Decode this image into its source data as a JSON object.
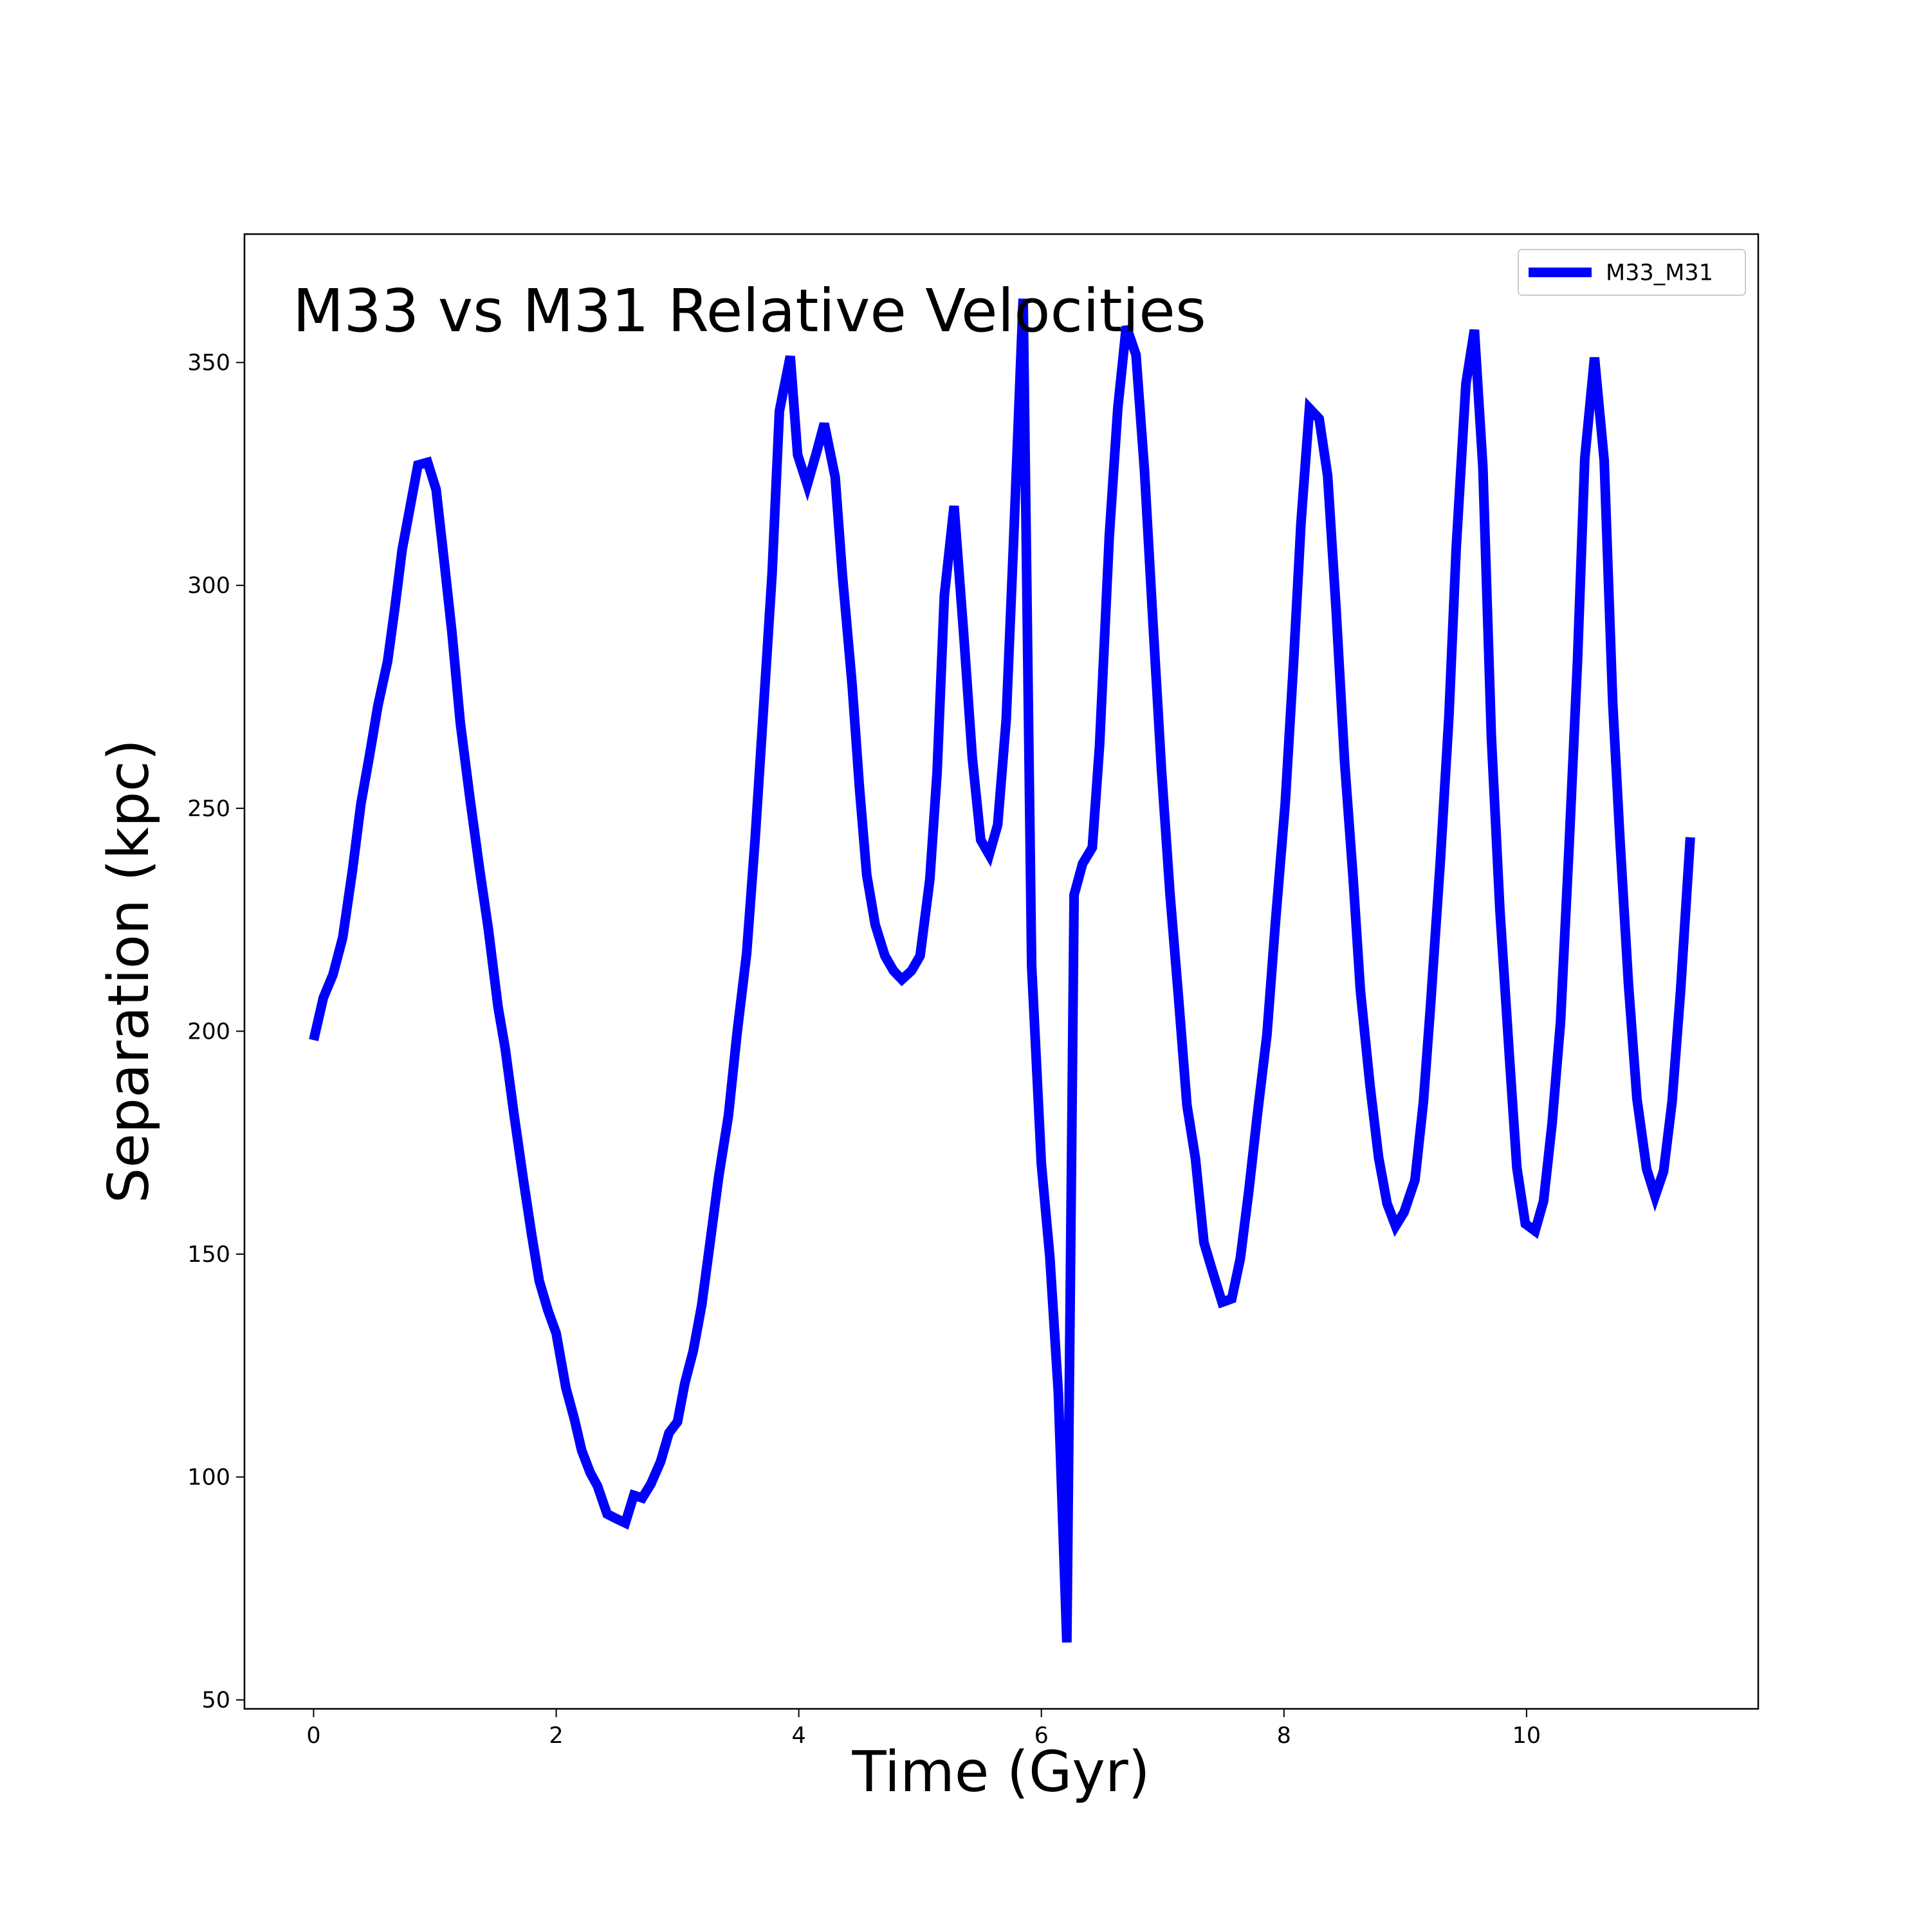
{
  "chart_data": {
    "type": "line",
    "title": "M33 vs M31 Relative Velocities",
    "x_label": "Time (Gyr)",
    "y_label": "Separation (kpc)",
    "x": [
      0,
      0.08,
      0.16,
      0.24,
      0.32,
      0.39,
      0.46,
      0.53,
      0.61,
      0.67,
      0.73,
      0.86,
      0.94,
      1.01,
      1.07,
      1.14,
      1.21,
      1.29,
      1.37,
      1.44,
      1.52,
      1.58,
      1.65,
      1.73,
      1.8,
      1.86,
      1.93,
      2.0,
      2.08,
      2.15,
      2.21,
      2.28,
      2.34,
      2.42,
      2.5,
      2.57,
      2.64,
      2.71,
      2.78,
      2.86,
      2.93,
      3.0,
      3.06,
      3.13,
      3.2,
      3.27,
      3.34,
      3.42,
      3.49,
      3.57,
      3.64,
      3.71,
      3.78,
      3.84,
      3.93,
      3.99,
      4.07,
      4.15,
      4.21,
      4.3,
      4.36,
      4.44,
      4.5,
      4.56,
      4.63,
      4.71,
      4.78,
      4.85,
      4.93,
      5.0,
      5.08,
      5.14,
      5.2,
      5.28,
      5.36,
      5.43,
      5.5,
      5.57,
      5.64,
      5.71,
      5.77,
      5.85,
      5.92,
      6.0,
      6.07,
      6.14,
      6.21,
      6.27,
      6.34,
      6.42,
      6.48,
      6.56,
      6.63,
      6.7,
      6.78,
      6.85,
      6.92,
      6.99,
      7.06,
      7.13,
      7.2,
      7.27,
      7.34,
      7.41,
      7.49,
      7.57,
      7.64,
      7.71,
      7.78,
      7.86,
      7.93,
      8.01,
      8.08,
      8.14,
      8.21,
      8.29,
      8.36,
      8.43,
      8.5,
      8.57,
      8.63,
      8.71,
      8.78,
      8.85,
      8.92,
      8.99,
      9.08,
      9.15,
      9.21,
      9.29,
      9.36,
      9.42,
      9.5,
      9.57,
      9.64,
      9.71,
      9.78,
      9.86,
      9.92,
      9.99,
      10.07,
      10.14,
      10.21,
      10.28,
      10.35,
      10.42,
      10.48,
      10.56,
      10.64,
      10.71,
      10.77,
      10.84,
      10.91,
      10.99,
      11.06,
      11.13,
      11.2,
      11.27,
      11.35
    ],
    "series": [
      {
        "name": "M33_M31",
        "color": "#0000ff",
        "values": [
          198,
          207.5,
          212.7,
          221,
          236,
          251,
          261.7,
          273,
          283,
          295,
          308,
          327,
          327.6,
          321.5,
          307,
          289.6,
          269,
          252,
          236,
          223,
          205.5,
          196,
          181.7,
          166.6,
          154,
          144,
          137.5,
          132.2,
          120,
          113,
          106,
          101,
          98,
          91.7,
          90.6,
          89.7,
          95.9,
          95.3,
          98.4,
          103.4,
          109.9,
          112.4,
          121,
          128.3,
          138.6,
          152.9,
          167.4,
          181.1,
          199.3,
          217.5,
          243.2,
          272.8,
          302.8,
          339.1,
          351.4,
          329.3,
          322.6,
          330.2,
          336.3,
          324.3,
          302.2,
          277.6,
          254.7,
          235.1,
          223.9,
          216.9,
          213.6,
          211.6,
          213.6,
          216.9,
          234,
          258,
          297.7,
          317.8,
          288.8,
          261.4,
          242.9,
          239.6,
          246.3,
          269.8,
          309.5,
          364.3,
          214.7,
          170.2,
          149.3,
          118.8,
          62.9,
          230.6,
          237.6,
          241.2,
          264.2,
          311.1,
          339.7,
          358.1,
          351.7,
          325.7,
          291.6,
          258.6,
          230.9,
          207.7,
          183.4,
          171.4,
          152.6,
          146.2,
          139.2,
          140,
          149,
          164.1,
          181.1,
          199.3,
          224.5,
          251,
          283.2,
          313.9,
          339.7,
          337.4,
          324.6,
          294.4,
          260.3,
          234.3,
          209.1,
          187.6,
          171.7,
          161.3,
          156.3,
          159.4,
          166.6,
          184.2,
          206.3,
          238.5,
          270.6,
          308.3,
          345.2,
          357.3,
          326.5,
          265.9,
          227.3,
          193.7,
          169.4,
          156.8,
          155.2,
          161.9,
          179.2,
          202.1,
          241.2,
          283.2,
          328.5,
          351.1,
          327.9,
          273.7,
          242.9,
          210.5,
          184.8,
          169.1,
          163,
          168.6,
          184.2,
          209.1,
          243.5
        ]
      }
    ],
    "xlim": [
      -0.57,
      11.91
    ],
    "ylim": [
      48,
      378.8
    ],
    "xticks": [
      0,
      2,
      4,
      6,
      8,
      10
    ],
    "yticks": [
      50,
      100,
      150,
      200,
      250,
      300,
      350
    ],
    "legend": "upper right",
    "grid": false
  }
}
